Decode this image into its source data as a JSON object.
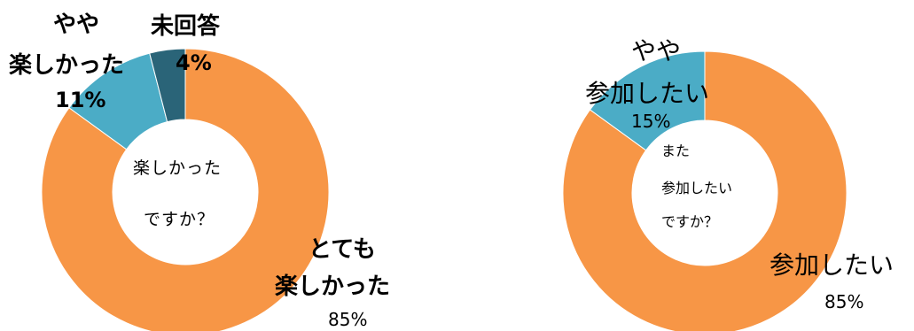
{
  "chart_data": [
    {
      "type": "donut",
      "center_lines": [
        "楽しかった",
        "ですか？"
      ],
      "categories": [
        "とても楽しかった",
        "やや楽しかった",
        "未回答"
      ],
      "values": [
        85,
        11,
        4
      ],
      "colors": [
        "#F79646",
        "#4BACC6",
        "#2A6478"
      ],
      "labels": {
        "very_l1": "とても",
        "very_l2": "楽しかった",
        "very_pct": "85%",
        "some_l1": "やや",
        "some_l2": "楽しかった",
        "some_pct": "11%",
        "none_l1": "未回答",
        "none_pct": "4%"
      }
    },
    {
      "type": "donut",
      "center_lines": [
        "また",
        "参加したい",
        "ですか？"
      ],
      "categories": [
        "参加したい",
        "やや参加したい"
      ],
      "values": [
        85,
        15
      ],
      "colors": [
        "#F79646",
        "#4BACC6"
      ],
      "labels": {
        "yes_l1": "参加したい",
        "yes_pct": "85%",
        "some_l1": "やや",
        "some_l2": "参加したい",
        "some_pct": "15%"
      }
    }
  ]
}
